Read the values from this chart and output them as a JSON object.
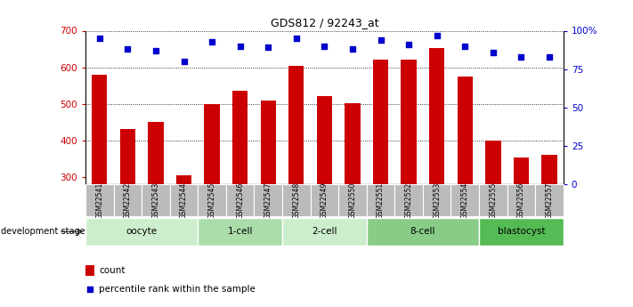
{
  "title": "GDS812 / 92243_at",
  "samples": [
    "GSM22541",
    "GSM22542",
    "GSM22543",
    "GSM22544",
    "GSM22545",
    "GSM22546",
    "GSM22547",
    "GSM22548",
    "GSM22549",
    "GSM22550",
    "GSM22551",
    "GSM22552",
    "GSM22553",
    "GSM22554",
    "GSM22555",
    "GSM22556",
    "GSM22557"
  ],
  "counts": [
    580,
    430,
    450,
    305,
    500,
    535,
    510,
    603,
    520,
    502,
    622,
    622,
    652,
    575,
    400,
    352,
    360
  ],
  "percentiles": [
    95,
    88,
    87,
    80,
    93,
    90,
    89,
    95,
    90,
    88,
    94,
    91,
    97,
    90,
    86,
    83,
    83
  ],
  "bar_color": "#cc0000",
  "dot_color": "#0000cc",
  "ylim_left": [
    280,
    700
  ],
  "ylim_right": [
    0,
    100
  ],
  "yticks_left": [
    300,
    400,
    500,
    600,
    700
  ],
  "yticks_right": [
    0,
    25,
    50,
    75,
    100
  ],
  "grid_values": [
    400,
    500,
    600,
    700
  ],
  "groups": [
    {
      "label": "oocyte",
      "start": 0,
      "end": 4,
      "color": "#cceecc"
    },
    {
      "label": "1-cell",
      "start": 4,
      "end": 7,
      "color": "#aaddaa"
    },
    {
      "label": "2-cell",
      "start": 7,
      "end": 10,
      "color": "#cceecc"
    },
    {
      "label": "8-cell",
      "start": 10,
      "end": 14,
      "color": "#88cc88"
    },
    {
      "label": "blastocyst",
      "start": 14,
      "end": 17,
      "color": "#55bb55"
    }
  ],
  "legend_count_label": "count",
  "legend_percentile_label": "percentile rank within the sample",
  "dev_stage_label": "development stage",
  "bar_width": 0.55,
  "background_color": "#ffffff",
  "tick_label_bg": "#bbbbbb"
}
